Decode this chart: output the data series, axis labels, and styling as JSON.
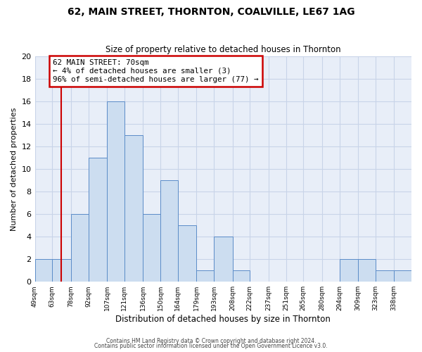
{
  "title": "62, MAIN STREET, THORNTON, COALVILLE, LE67 1AG",
  "subtitle": "Size of property relative to detached houses in Thornton",
  "xlabel": "Distribution of detached houses by size in Thornton",
  "ylabel": "Number of detached properties",
  "bin_labels": [
    "49sqm",
    "63sqm",
    "78sqm",
    "92sqm",
    "107sqm",
    "121sqm",
    "136sqm",
    "150sqm",
    "164sqm",
    "179sqm",
    "193sqm",
    "208sqm",
    "222sqm",
    "237sqm",
    "251sqm",
    "265sqm",
    "280sqm",
    "294sqm",
    "309sqm",
    "323sqm",
    "338sqm"
  ],
  "bin_edges": [
    49,
    63,
    78,
    92,
    107,
    121,
    136,
    150,
    164,
    179,
    193,
    208,
    222,
    237,
    251,
    265,
    280,
    294,
    309,
    323,
    338,
    352
  ],
  "counts": [
    2,
    2,
    6,
    11,
    16,
    13,
    6,
    9,
    5,
    1,
    4,
    1,
    0,
    0,
    0,
    0,
    0,
    2,
    2,
    1,
    1
  ],
  "bar_facecolor": "#ccddf0",
  "bar_edgecolor": "#5b8cc8",
  "grid_color": "#c8d4e8",
  "background_color": "#e8eef8",
  "property_line_x": 70,
  "red_line_color": "#cc0000",
  "annotation_text": "62 MAIN STREET: 70sqm\n← 4% of detached houses are smaller (3)\n96% of semi-detached houses are larger (77) →",
  "annotation_box_edgecolor": "#cc0000",
  "ylim": [
    0,
    20
  ],
  "yticks": [
    0,
    2,
    4,
    6,
    8,
    10,
    12,
    14,
    16,
    18,
    20
  ],
  "footer_line1": "Contains HM Land Registry data © Crown copyright and database right 2024.",
  "footer_line2": "Contains public sector information licensed under the Open Government Licence v3.0."
}
